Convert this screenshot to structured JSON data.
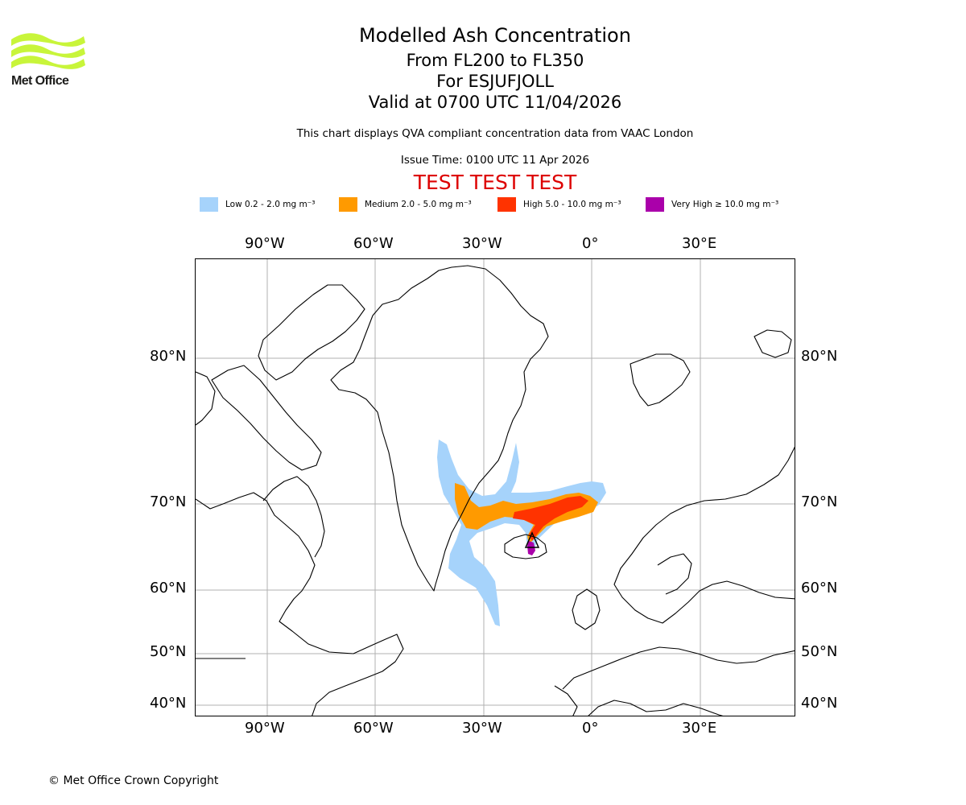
{
  "org": {
    "name": "Met Office",
    "logo_icon": "met-office-wave-icon",
    "logo_color": "#c8f53a"
  },
  "header": {
    "title": "Modelled Ash Concentration",
    "levels": "From FL200 to FL350",
    "volcano": "For ESJUFJOLL",
    "valid_time": "Valid at 0700 UTC 11/04/2026",
    "description": "This chart displays QVA compliant concentration data from VAAC London",
    "issue_time": "Issue Time: 0100 UTC 11 Apr 2026",
    "test_banner": "TEST TEST TEST"
  },
  "legend": [
    {
      "label": "Low 0.2 - 2.0 mg m⁻³",
      "color": "#a6d3fb"
    },
    {
      "label": "Medium 2.0 - 5.0 mg m⁻³",
      "color": "#ff9a00"
    },
    {
      "label": "High 5.0 - 10.0 mg m⁻³",
      "color": "#ff3300"
    },
    {
      "label": "Very High ≥ 10.0 mg m⁻³",
      "color": "#aa00aa"
    }
  ],
  "map": {
    "lon_labels": [
      "90°W",
      "60°W",
      "30°W",
      "0°",
      "30°E"
    ],
    "lat_labels": [
      "80°N",
      "70°N",
      "60°N",
      "50°N",
      "40°N"
    ],
    "grid": true,
    "gridline_color": "#b0b0b0",
    "volcano_marker_icon": "volcano-triangle-icon"
  },
  "footer": {
    "copyright": "© Met Office Crown Copyright"
  }
}
